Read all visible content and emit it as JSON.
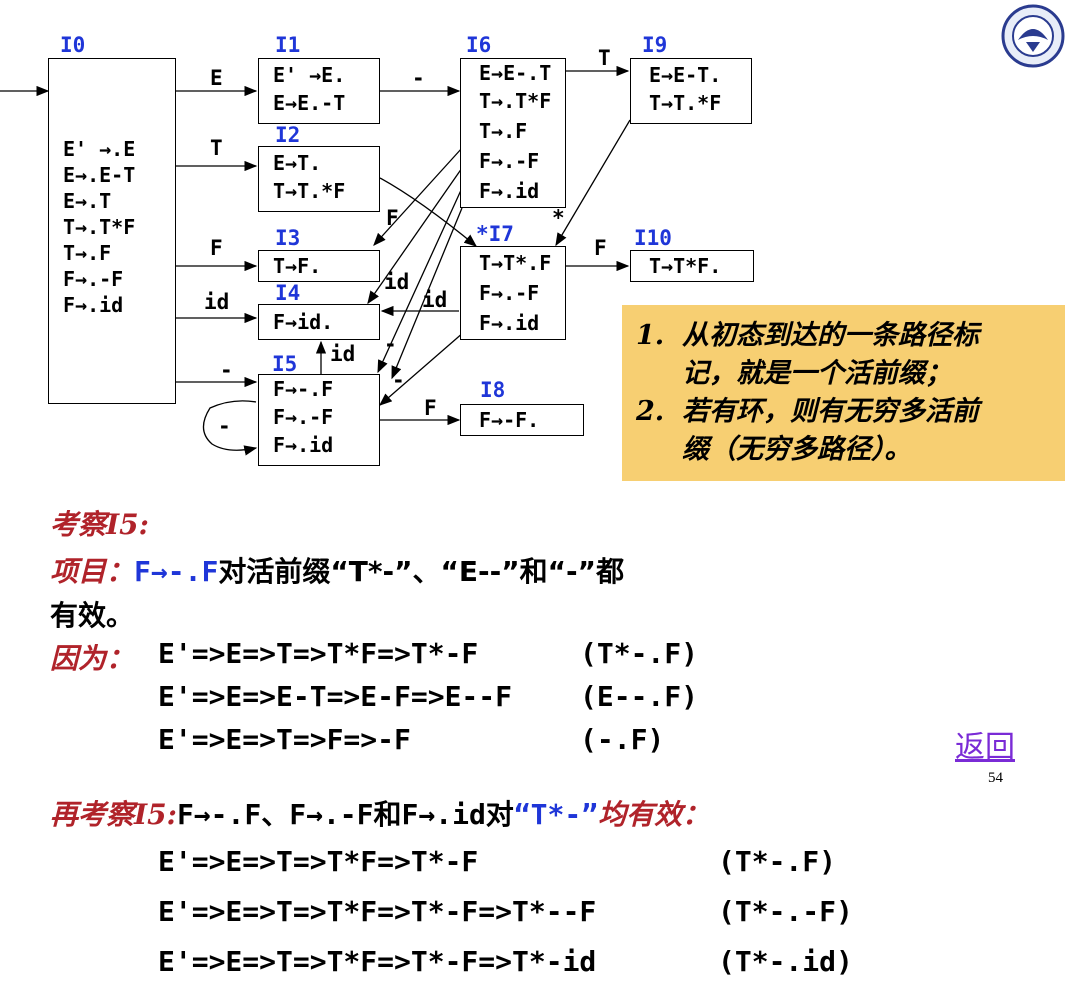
{
  "states": {
    "I0": {
      "label": "I0",
      "items": [
        "E' →.E",
        "E→.E-T",
        "E→.T",
        "T→.T*F",
        "T→.F",
        "F→.-F",
        "F→.id"
      ]
    },
    "I1": {
      "label": "I1",
      "items": [
        "E' →E.",
        "E→E.-T"
      ]
    },
    "I2": {
      "label": "I2",
      "items": [
        "E→T.",
        "T→T.*F"
      ]
    },
    "I3": {
      "label": "I3",
      "items": [
        "T→F."
      ]
    },
    "I4": {
      "label": "I4",
      "items": [
        "F→id."
      ]
    },
    "I5": {
      "label": "I5",
      "items": [
        "F→-.F",
        "F→.-F",
        "F→.id"
      ]
    },
    "I6": {
      "label": "I6",
      "items": [
        "E→E-.T",
        "T→.T*F",
        "T→.F",
        "F→.-F",
        "F→.id"
      ]
    },
    "I7": {
      "label": "*I7",
      "items": [
        "T→T*.F",
        "F→.-F",
        "F→.id"
      ]
    },
    "I8": {
      "label": "I8",
      "items": [
        "F→-F."
      ]
    },
    "I9": {
      "label": "I9",
      "items": [
        "E→E-T.",
        "T→T.*F"
      ]
    },
    "I10": {
      "label": "I10",
      "items": [
        "T→T*F."
      ]
    }
  },
  "edge_labels": {
    "e01": "E",
    "e02": "T",
    "e03": "F",
    "e04": "id",
    "e05": "-",
    "e55": "-",
    "e16": "-",
    "e69": "T",
    "e63": "F",
    "e6id": "id",
    "e74": "id",
    "e5id": "id",
    "e710": "F",
    "e58": "F",
    "e27": "*",
    "e6m": "-",
    "e7m": "-"
  },
  "note": {
    "n1": "1.",
    "t1a": "从初态到达的一条路径标",
    "t1b": "记，就是一个活前缀；",
    "n2": "2.",
    "t2a": "若有环，则有无穷多活前",
    "t2b": "缀（无穷多路径）。"
  },
  "text": {
    "kc_label": "考察",
    "kc_tail": "I5:",
    "xm_label": "项目：",
    "xm_item": "F→-.F",
    "xm_mid": "对活前缀“T*-”、“E--”和“-”都",
    "xm_line2": "有效。",
    "yw_label": "因为：",
    "d1": "E'=>E=>T=>T*F=>T*-F",
    "d1r": "(T*-.F)",
    "d2": "E'=>E=>E-T=>E-F=>E--F",
    "d2r": "(E--.F)",
    "d3": "E'=>E=>T=>F=>-F",
    "d3r": "(-.F)",
    "back": "返回",
    "page": "54",
    "zk_label": "再考察",
    "zk_tail": "I5:",
    "zk_a": "F→-.F、F→.-F和F→.id对",
    "zk_b": "“T*-”",
    "zk_c": "均有效：",
    "d4": "E'=>E=>T=>T*F=>T*-F",
    "d4r": "(T*-.F)",
    "d5": "E'=>E=>T=>T*F=>T*-F=>T*--F",
    "d5r": "(T*-.-F)",
    "d6": "E'=>E=>T=>T*F=>T*-F=>T*-id",
    "d6r": "(T*-.id)"
  },
  "colors": {
    "accent_blue": "#1f36d8",
    "title_red": "#b0232a",
    "note_bg": "#f7cf72",
    "link": "#7a2bd6"
  }
}
